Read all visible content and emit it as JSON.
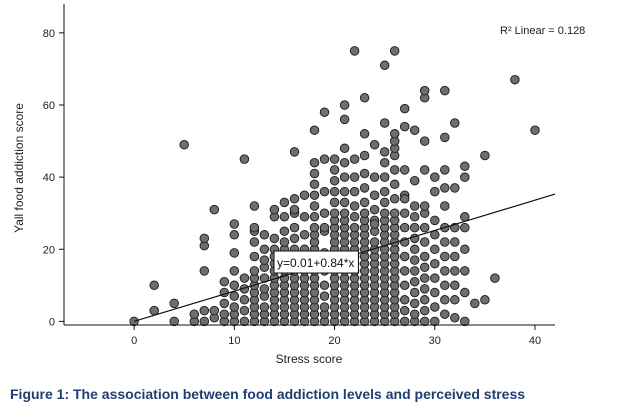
{
  "caption": "Figure 1: The association between food addiction levels and perceived stress",
  "chart_data": {
    "type": "scatter",
    "title": "",
    "xlabel": "Stress score",
    "ylabel": "Yall food addiction score",
    "xlim": [
      -7,
      42
    ],
    "ylim": [
      -1,
      88
    ],
    "xticks": [
      0,
      10,
      20,
      30,
      40
    ],
    "yticks": [
      0,
      20,
      40,
      60,
      80
    ],
    "grid": false,
    "marker_color": "#6e6e6e",
    "marker_edge": "#1a1a1a",
    "r2_label": "R² Linear = 0.128",
    "fit_line": {
      "equation_label": "y=0.01+0.84*x",
      "intercept": 0.01,
      "slope": 0.84,
      "x_range": [
        0,
        42
      ]
    },
    "points": [
      [
        0,
        0
      ],
      [
        2,
        3
      ],
      [
        2,
        10
      ],
      [
        4,
        0
      ],
      [
        4,
        5
      ],
      [
        5,
        49
      ],
      [
        6,
        0
      ],
      [
        6,
        2
      ],
      [
        7,
        0
      ],
      [
        7,
        3
      ],
      [
        7,
        14
      ],
      [
        7,
        21
      ],
      [
        7,
        23
      ],
      [
        8,
        1
      ],
      [
        8,
        3
      ],
      [
        8,
        31
      ],
      [
        9,
        0
      ],
      [
        9,
        2
      ],
      [
        9,
        5
      ],
      [
        9,
        8
      ],
      [
        9,
        11
      ],
      [
        10,
        0
      ],
      [
        10,
        2
      ],
      [
        10,
        4
      ],
      [
        10,
        7
      ],
      [
        10,
        10
      ],
      [
        10,
        19
      ],
      [
        10,
        24
      ],
      [
        10,
        27
      ],
      [
        11,
        0
      ],
      [
        11,
        3
      ],
      [
        11,
        6
      ],
      [
        11,
        9
      ],
      [
        11,
        12
      ],
      [
        11,
        45
      ],
      [
        12,
        0
      ],
      [
        12,
        2
      ],
      [
        12,
        4
      ],
      [
        12,
        6
      ],
      [
        12,
        8
      ],
      [
        12,
        10
      ],
      [
        12,
        12
      ],
      [
        12,
        14
      ],
      [
        12,
        18
      ],
      [
        12,
        22
      ],
      [
        12,
        25
      ],
      [
        12,
        32
      ],
      [
        13,
        0
      ],
      [
        13,
        2
      ],
      [
        13,
        4
      ],
      [
        13,
        7
      ],
      [
        13,
        9
      ],
      [
        13,
        12
      ],
      [
        13,
        15
      ],
      [
        13,
        20
      ],
      [
        13,
        24
      ],
      [
        14,
        0
      ],
      [
        14,
        2
      ],
      [
        14,
        4
      ],
      [
        14,
        6
      ],
      [
        14,
        8
      ],
      [
        14,
        10
      ],
      [
        14,
        12
      ],
      [
        14,
        14
      ],
      [
        14,
        16
      ],
      [
        14,
        18
      ],
      [
        14,
        20
      ],
      [
        14,
        23
      ],
      [
        14,
        29
      ],
      [
        15,
        0
      ],
      [
        15,
        2
      ],
      [
        15,
        4
      ],
      [
        15,
        6
      ],
      [
        15,
        8
      ],
      [
        15,
        10
      ],
      [
        15,
        12
      ],
      [
        15,
        14
      ],
      [
        15,
        16
      ],
      [
        15,
        18
      ],
      [
        15,
        20
      ],
      [
        15,
        22
      ],
      [
        15,
        25
      ],
      [
        15,
        29
      ],
      [
        15,
        33
      ],
      [
        16,
        0
      ],
      [
        16,
        2
      ],
      [
        16,
        4
      ],
      [
        16,
        6
      ],
      [
        16,
        8
      ],
      [
        16,
        10
      ],
      [
        16,
        12
      ],
      [
        16,
        14
      ],
      [
        16,
        16
      ],
      [
        16,
        18
      ],
      [
        16,
        20
      ],
      [
        16,
        23
      ],
      [
        16,
        26
      ],
      [
        16,
        30
      ],
      [
        16,
        34
      ],
      [
        16,
        47
      ],
      [
        17,
        0
      ],
      [
        17,
        2
      ],
      [
        17,
        4
      ],
      [
        17,
        6
      ],
      [
        17,
        8
      ],
      [
        17,
        10
      ],
      [
        17,
        12
      ],
      [
        17,
        14
      ],
      [
        17,
        17
      ],
      [
        17,
        20
      ],
      [
        17,
        24
      ],
      [
        17,
        29
      ],
      [
        17,
        35
      ],
      [
        18,
        0
      ],
      [
        18,
        2
      ],
      [
        18,
        4
      ],
      [
        18,
        6
      ],
      [
        18,
        8
      ],
      [
        18,
        10
      ],
      [
        18,
        12
      ],
      [
        18,
        14
      ],
      [
        18,
        16
      ],
      [
        18,
        18
      ],
      [
        18,
        20
      ],
      [
        18,
        22
      ],
      [
        18,
        24
      ],
      [
        18,
        26
      ],
      [
        18,
        29
      ],
      [
        18,
        32
      ],
      [
        18,
        35
      ],
      [
        18,
        38
      ],
      [
        18,
        41
      ],
      [
        18,
        44
      ],
      [
        18,
        53
      ],
      [
        19,
        0
      ],
      [
        19,
        2
      ],
      [
        19,
        4
      ],
      [
        19,
        7
      ],
      [
        19,
        10
      ],
      [
        19,
        14
      ],
      [
        19,
        19
      ],
      [
        19,
        25
      ],
      [
        19,
        30
      ],
      [
        19,
        36
      ],
      [
        19,
        45
      ],
      [
        19,
        58
      ],
      [
        20,
        0
      ],
      [
        20,
        2
      ],
      [
        20,
        4
      ],
      [
        20,
        6
      ],
      [
        20,
        8
      ],
      [
        20,
        10
      ],
      [
        20,
        12
      ],
      [
        20,
        14
      ],
      [
        20,
        16
      ],
      [
        20,
        18
      ],
      [
        20,
        20
      ],
      [
        20,
        22
      ],
      [
        20,
        24
      ],
      [
        20,
        26
      ],
      [
        20,
        28
      ],
      [
        20,
        30
      ],
      [
        20,
        33
      ],
      [
        20,
        36
      ],
      [
        20,
        39
      ],
      [
        20,
        42
      ],
      [
        20,
        45
      ],
      [
        21,
        0
      ],
      [
        21,
        2
      ],
      [
        21,
        4
      ],
      [
        21,
        6
      ],
      [
        21,
        8
      ],
      [
        21,
        10
      ],
      [
        21,
        12
      ],
      [
        21,
        14
      ],
      [
        21,
        16
      ],
      [
        21,
        18
      ],
      [
        21,
        20
      ],
      [
        21,
        22
      ],
      [
        21,
        24
      ],
      [
        21,
        26
      ],
      [
        21,
        28
      ],
      [
        21,
        30
      ],
      [
        21,
        33
      ],
      [
        21,
        36
      ],
      [
        21,
        40
      ],
      [
        21,
        44
      ],
      [
        21,
        48
      ],
      [
        21,
        56
      ],
      [
        21,
        60
      ],
      [
        22,
        0
      ],
      [
        22,
        2
      ],
      [
        22,
        4
      ],
      [
        22,
        6
      ],
      [
        22,
        8
      ],
      [
        22,
        10
      ],
      [
        22,
        12
      ],
      [
        22,
        14
      ],
      [
        22,
        16
      ],
      [
        22,
        18
      ],
      [
        22,
        20
      ],
      [
        22,
        22
      ],
      [
        22,
        24
      ],
      [
        22,
        26
      ],
      [
        22,
        29
      ],
      [
        22,
        32
      ],
      [
        22,
        36
      ],
      [
        22,
        40
      ],
      [
        22,
        45
      ],
      [
        22,
        75
      ],
      [
        23,
        0
      ],
      [
        23,
        2
      ],
      [
        23,
        4
      ],
      [
        23,
        6
      ],
      [
        23,
        8
      ],
      [
        23,
        10
      ],
      [
        23,
        12
      ],
      [
        23,
        14
      ],
      [
        23,
        16
      ],
      [
        23,
        18
      ],
      [
        23,
        20
      ],
      [
        23,
        22
      ],
      [
        23,
        24
      ],
      [
        23,
        26
      ],
      [
        23,
        28
      ],
      [
        23,
        30
      ],
      [
        23,
        33
      ],
      [
        23,
        37
      ],
      [
        23,
        41
      ],
      [
        23,
        46
      ],
      [
        23,
        52
      ],
      [
        23,
        62
      ],
      [
        24,
        0
      ],
      [
        24,
        2
      ],
      [
        24,
        4
      ],
      [
        24,
        6
      ],
      [
        24,
        8
      ],
      [
        24,
        10
      ],
      [
        24,
        12
      ],
      [
        24,
        14
      ],
      [
        24,
        16
      ],
      [
        24,
        18
      ],
      [
        24,
        20
      ],
      [
        24,
        22
      ],
      [
        24,
        25
      ],
      [
        24,
        28
      ],
      [
        24,
        31
      ],
      [
        24,
        35
      ],
      [
        24,
        40
      ],
      [
        24,
        49
      ],
      [
        25,
        0
      ],
      [
        25,
        2
      ],
      [
        25,
        4
      ],
      [
        25,
        6
      ],
      [
        25,
        8
      ],
      [
        25,
        10
      ],
      [
        25,
        12
      ],
      [
        25,
        14
      ],
      [
        25,
        16
      ],
      [
        25,
        18
      ],
      [
        25,
        20
      ],
      [
        25,
        22
      ],
      [
        25,
        24
      ],
      [
        25,
        26
      ],
      [
        25,
        28
      ],
      [
        25,
        30
      ],
      [
        25,
        33
      ],
      [
        25,
        36
      ],
      [
        25,
        40
      ],
      [
        25,
        44
      ],
      [
        25,
        47
      ],
      [
        25,
        55
      ],
      [
        25,
        71
      ],
      [
        26,
        0
      ],
      [
        26,
        2
      ],
      [
        26,
        4
      ],
      [
        26,
        6
      ],
      [
        26,
        8
      ],
      [
        26,
        10
      ],
      [
        26,
        12
      ],
      [
        26,
        14
      ],
      [
        26,
        16
      ],
      [
        26,
        18
      ],
      [
        26,
        20
      ],
      [
        26,
        22
      ],
      [
        26,
        24
      ],
      [
        26,
        26
      ],
      [
        26,
        28
      ],
      [
        26,
        30
      ],
      [
        26,
        34
      ],
      [
        26,
        38
      ],
      [
        26,
        42
      ],
      [
        26,
        46
      ],
      [
        26,
        48
      ],
      [
        26,
        50
      ],
      [
        26,
        52
      ],
      [
        26,
        75
      ],
      [
        27,
        0
      ],
      [
        27,
        3
      ],
      [
        27,
        6
      ],
      [
        27,
        10
      ],
      [
        27,
        14
      ],
      [
        27,
        18
      ],
      [
        27,
        22
      ],
      [
        27,
        26
      ],
      [
        27,
        30
      ],
      [
        27,
        35
      ],
      [
        27,
        42
      ],
      [
        27,
        54
      ],
      [
        27,
        59
      ],
      [
        28,
        0
      ],
      [
        28,
        2
      ],
      [
        28,
        5
      ],
      [
        28,
        8
      ],
      [
        28,
        11
      ],
      [
        28,
        14
      ],
      [
        28,
        17
      ],
      [
        28,
        20
      ],
      [
        28,
        23
      ],
      [
        28,
        26
      ],
      [
        28,
        29
      ],
      [
        28,
        32
      ],
      [
        28,
        39
      ],
      [
        28,
        53
      ],
      [
        29,
        0
      ],
      [
        29,
        3
      ],
      [
        29,
        6
      ],
      [
        29,
        9
      ],
      [
        29,
        12
      ],
      [
        29,
        15
      ],
      [
        29,
        18
      ],
      [
        29,
        22
      ],
      [
        29,
        26
      ],
      [
        29,
        30
      ],
      [
        29,
        32
      ],
      [
        29,
        42
      ],
      [
        29,
        50
      ],
      [
        29,
        62
      ],
      [
        29,
        64
      ],
      [
        30,
        0
      ],
      [
        30,
        4
      ],
      [
        30,
        8
      ],
      [
        30,
        12
      ],
      [
        30,
        16
      ],
      [
        30,
        20
      ],
      [
        30,
        24
      ],
      [
        30,
        28
      ],
      [
        30,
        40
      ],
      [
        31,
        2
      ],
      [
        31,
        6
      ],
      [
        31,
        10
      ],
      [
        31,
        14
      ],
      [
        31,
        18
      ],
      [
        31,
        22
      ],
      [
        31,
        26
      ],
      [
        31,
        32
      ],
      [
        31,
        42
      ],
      [
        31,
        51
      ],
      [
        31,
        64
      ],
      [
        32,
        1
      ],
      [
        32,
        6
      ],
      [
        32,
        10
      ],
      [
        32,
        14
      ],
      [
        32,
        18
      ],
      [
        32,
        22
      ],
      [
        32,
        26
      ],
      [
        32,
        37
      ],
      [
        32,
        55
      ],
      [
        33,
        0
      ],
      [
        33,
        8
      ],
      [
        33,
        14
      ],
      [
        33,
        20
      ],
      [
        33,
        26
      ],
      [
        33,
        29
      ],
      [
        33,
        40
      ],
      [
        33,
        43
      ],
      [
        34,
        5
      ],
      [
        35,
        6
      ],
      [
        35,
        46
      ],
      [
        36,
        12
      ],
      [
        38,
        67
      ],
      [
        40,
        53
      ],
      [
        12,
        26
      ],
      [
        14,
        31
      ],
      [
        16,
        31
      ],
      [
        19,
        26
      ],
      [
        24,
        27
      ],
      [
        27,
        34
      ],
      [
        30,
        36
      ],
      [
        31,
        37
      ],
      [
        13,
        17
      ],
      [
        10,
        14
      ]
    ]
  }
}
